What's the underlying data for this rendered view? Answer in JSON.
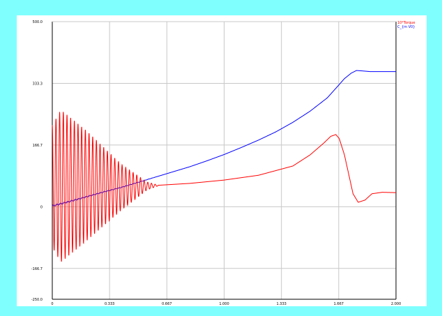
{
  "chart_data": {
    "type": "line",
    "title": "",
    "xlabel": "",
    "ylabel": "",
    "xlim": [
      0,
      2.0
    ],
    "ylim": [
      -250.0,
      500.0
    ],
    "x_ticks": [
      "0",
      "0.333",
      "0.667",
      "1.000",
      "1.333",
      "1.667",
      "2.000"
    ],
    "y_ticks": [
      "500.0",
      "333.3",
      "166.7",
      "0",
      "-166.7",
      "-250.0"
    ],
    "grid": true,
    "legend_position": "top-right",
    "series": [
      {
        "name": "10*Torque",
        "color": "#ff0000",
        "style": "damped oscillation (~29 cycles, decays by x≈0.62) then smooth rise",
        "envelope_upper": [
          [
            0.0,
            220
          ],
          [
            0.05,
            262
          ],
          [
            0.2,
            205
          ],
          [
            0.4,
            115
          ],
          [
            0.55,
            67
          ],
          [
            0.62,
            58
          ]
        ],
        "envelope_lower": [
          [
            0.0,
            -110
          ],
          [
            0.05,
            -150
          ],
          [
            0.2,
            -92
          ],
          [
            0.4,
            -10
          ],
          [
            0.55,
            45
          ],
          [
            0.62,
            57
          ]
        ],
        "x": [
          0.62,
          0.8,
          1.0,
          1.2,
          1.4,
          1.5,
          1.58,
          1.62,
          1.65,
          1.67,
          1.7,
          1.75,
          1.78,
          1.82,
          1.86,
          1.92,
          2.0
        ],
        "y": [
          58,
          63,
          72,
          85,
          110,
          140,
          172,
          190,
          195,
          184,
          140,
          35,
          12,
          18,
          35,
          39,
          38
        ]
      },
      {
        "name": "C_{m V0}",
        "color": "#0000ff",
        "style": "monotonic rise with small early ripple, then flat",
        "x": [
          0.0,
          0.1,
          0.2,
          0.3,
          0.4,
          0.5,
          0.6,
          0.7,
          0.8,
          0.9,
          1.0,
          1.1,
          1.2,
          1.3,
          1.4,
          1.5,
          1.6,
          1.66,
          1.7,
          1.74,
          1.77,
          1.8,
          1.85,
          2.0
        ],
        "y": [
          2,
          14,
          27,
          40,
          52,
          66,
          80,
          94,
          108,
          124,
          141,
          160,
          180,
          202,
          228,
          258,
          294,
          325,
          346,
          361,
          368,
          367,
          365,
          365
        ]
      }
    ]
  }
}
